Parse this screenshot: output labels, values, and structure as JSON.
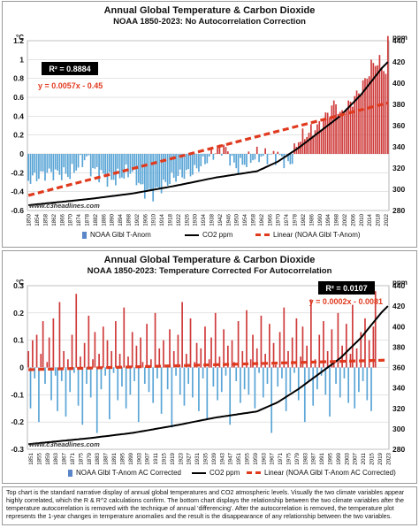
{
  "colors": {
    "anom_up": "#cf3b3b",
    "anom_down": "#5aa5d6",
    "co2": "#000000",
    "trend": "#e03a1e",
    "grid": "#c8c8c8",
    "stat_box_bg": "#000000",
    "stat_box_fg": "#ffffff",
    "eq_text": "#e03a1e"
  },
  "watermark": "www.c3headlines.com",
  "caption": "Top chart is the standard narrative display of annual global temperatures and CO2 atmospheric levels. Visually the two climate variables appear highly correlated, which the R & R^2 calculations confirm. The bottom chart displays the relationship between the two climate variables after the temperature autocorrelation is removed with the technique of annual 'differencing'. After the autocorrelation is removed, the temperature plot represents the 1-year changes in temperature anomalies and the result is the disappearance of any relationship between the two variables.",
  "chart_data": [
    {
      "type": "bar",
      "title": "Annual Global Temperature & Carbon Dioxide",
      "subtitle": "NOAA 1850-2023: No Autocorrelation Correction",
      "ylabel": "°C",
      "y2label": "ppm",
      "ylim": [
        -0.6,
        1.2
      ],
      "y2lim": [
        280,
        440
      ],
      "yticks": [
        "-0.6",
        "-0.4",
        "-0.2",
        "0",
        "0.2",
        "0.4",
        "0.6",
        "0.8",
        "1",
        "1.2"
      ],
      "y2ticks": [
        "280",
        "300",
        "320",
        "340",
        "360",
        "380",
        "400",
        "420",
        "440"
      ],
      "xlim": [
        1850,
        2023
      ],
      "x_tick_start": 1850,
      "x_tick_step": 4,
      "x_tick_end": 2022,
      "grid": true,
      "legend_position": "bottom",
      "legend": [
        "NOAA Glbl T-Anom",
        "CO2 ppm",
        "Linear (NOAA Glbl T-Anom)"
      ],
      "r2_label": "R² = 0.8884",
      "equation": "y = 0.0057x - 0.45",
      "trend": {
        "slope_per_year": 0.0057,
        "start": -0.44,
        "end": 0.54
      },
      "anomaly_anchors": [
        [
          1850,
          -0.27
        ],
        [
          1860,
          -0.2
        ],
        [
          1870,
          -0.22
        ],
        [
          1878,
          -0.03
        ],
        [
          1880,
          -0.15
        ],
        [
          1890,
          -0.28
        ],
        [
          1900,
          -0.18
        ],
        [
          1905,
          -0.38
        ],
        [
          1910,
          -0.42
        ],
        [
          1920,
          -0.25
        ],
        [
          1930,
          -0.18
        ],
        [
          1940,
          0.02
        ],
        [
          1944,
          0.08
        ],
        [
          1950,
          -0.15
        ],
        [
          1960,
          -0.02
        ],
        [
          1970,
          -0.02
        ],
        [
          1976,
          -0.1
        ],
        [
          1980,
          0.15
        ],
        [
          1990,
          0.3
        ],
        [
          1998,
          0.55
        ],
        [
          2000,
          0.4
        ],
        [
          2010,
          0.68
        ],
        [
          2016,
          0.97
        ],
        [
          2020,
          0.96
        ],
        [
          2022,
          0.85
        ],
        [
          2023,
          1.17
        ]
      ],
      "co2_anchors": [
        [
          1850,
          285
        ],
        [
          1880,
          291
        ],
        [
          1900,
          296
        ],
        [
          1920,
          303
        ],
        [
          1940,
          311
        ],
        [
          1960,
          317
        ],
        [
          1970,
          326
        ],
        [
          1980,
          339
        ],
        [
          1990,
          354
        ],
        [
          2000,
          369
        ],
        [
          2010,
          389
        ],
        [
          2020,
          414
        ],
        [
          2023,
          420
        ]
      ]
    },
    {
      "type": "bar",
      "title": "Annual Global Temperature & Carbon Dioxide",
      "subtitle": "NOAA 1850-2023: Temperature Corrected For Autocorrelation",
      "ylabel": "°C",
      "y2label": "ppm",
      "ylim": [
        -0.3,
        0.3
      ],
      "y2lim": [
        280,
        440
      ],
      "yticks": [
        "-0.3",
        "-0.2",
        "-0.1",
        "0",
        "0.1",
        "0.2",
        "0.3"
      ],
      "y2ticks": [
        "280",
        "300",
        "320",
        "340",
        "360",
        "380",
        "400",
        "420",
        "440"
      ],
      "xlim": [
        1850,
        2023
      ],
      "x_tick_start": 1851,
      "x_tick_step": 4,
      "x_tick_end": 2023,
      "grid": true,
      "legend_position": "bottom",
      "legend": [
        "NOAA Glbl T-Anom AC Corrected",
        "CO2 ppm",
        "Linear (NOAA Glbl T-Anom AC Corrected)"
      ],
      "r2_label": "R² = 0.0107",
      "equation": "y = 0.0002x - 0.0081",
      "trend": {
        "slope_per_year": 0.0002,
        "start": -0.0081,
        "end": 0.027
      },
      "diff_values": [
        0.06,
        -0.15,
        0.1,
        -0.04,
        0.12,
        -0.2,
        0.05,
        0.17,
        -0.06,
        0.02,
        0.11,
        -0.12,
        0.18,
        -0.03,
        -0.16,
        0.24,
        -0.05,
        0.06,
        -0.18,
        0.03,
        -0.09,
        0.12,
        -0.02,
        0.27,
        -0.14,
        0.04,
        -0.21,
        0.09,
        -0.06,
        0.19,
        -0.11,
        0.03,
        0.13,
        -0.24,
        0.05,
        -0.08,
        0.15,
        -0.03,
        0.1,
        -0.19,
        0.06,
        -0.02,
        0.17,
        -0.12,
        0.05,
        -0.07,
        0.22,
        -0.15,
        0.04,
        -0.1,
        0.13,
        -0.05,
        0.08,
        -0.2,
        0.11,
        0.02,
        -0.06,
        0.16,
        -0.09,
        0.03,
        -0.13,
        0.2,
        -0.04,
        0.07,
        -0.17,
        0.1,
        0.01,
        -0.08,
        0.14,
        -0.22,
        0.06,
        -0.03,
        0.12,
        -0.1,
        0.24,
        -0.14,
        0.05,
        -0.06,
        0.18,
        -0.11,
        0.02,
        0.09,
        -0.16,
        0.07,
        -0.04,
        0.15,
        -0.19,
        0.03,
        0.11,
        -0.07,
        0.2,
        -0.12,
        0.04,
        -0.09,
        0.14,
        -0.03,
        0.08,
        -0.21,
        0.1,
        0.02,
        -0.05,
        0.17,
        -0.13,
        0.06,
        -0.08,
        0.21,
        -0.1,
        0.03,
        0.12,
        -0.15,
        0.07,
        -0.02,
        0.19,
        -0.11,
        0.05,
        -0.06,
        0.16,
        -0.24,
        0.09,
        0.01,
        -0.07,
        0.13,
        -0.04,
        0.22,
        -0.16,
        0.06,
        -0.09,
        0.11,
        -0.02,
        0.18,
        -0.12,
        0.04,
        0.15,
        -0.2,
        0.08,
        -0.05,
        0.25,
        -0.14,
        0.03,
        -0.08,
        0.12,
        -0.03,
        0.17,
        -0.1,
        0.06,
        -0.18,
        0.14,
        0.02,
        -0.06,
        0.2,
        -0.11,
        0.08,
        -0.04,
        0.16,
        -0.13,
        0.05,
        0.23,
        -0.15,
        0.07,
        -0.09,
        0.13,
        -0.05,
        0.18,
        -0.12,
        0.1,
        -0.16,
        0.15,
        0.28
      ],
      "co2_anchors": [
        [
          1850,
          285
        ],
        [
          1880,
          291
        ],
        [
          1900,
          296
        ],
        [
          1920,
          303
        ],
        [
          1940,
          311
        ],
        [
          1960,
          317
        ],
        [
          1970,
          326
        ],
        [
          1980,
          339
        ],
        [
          1990,
          354
        ],
        [
          2000,
          369
        ],
        [
          2010,
          389
        ],
        [
          2020,
          414
        ],
        [
          2023,
          420
        ]
      ]
    }
  ]
}
